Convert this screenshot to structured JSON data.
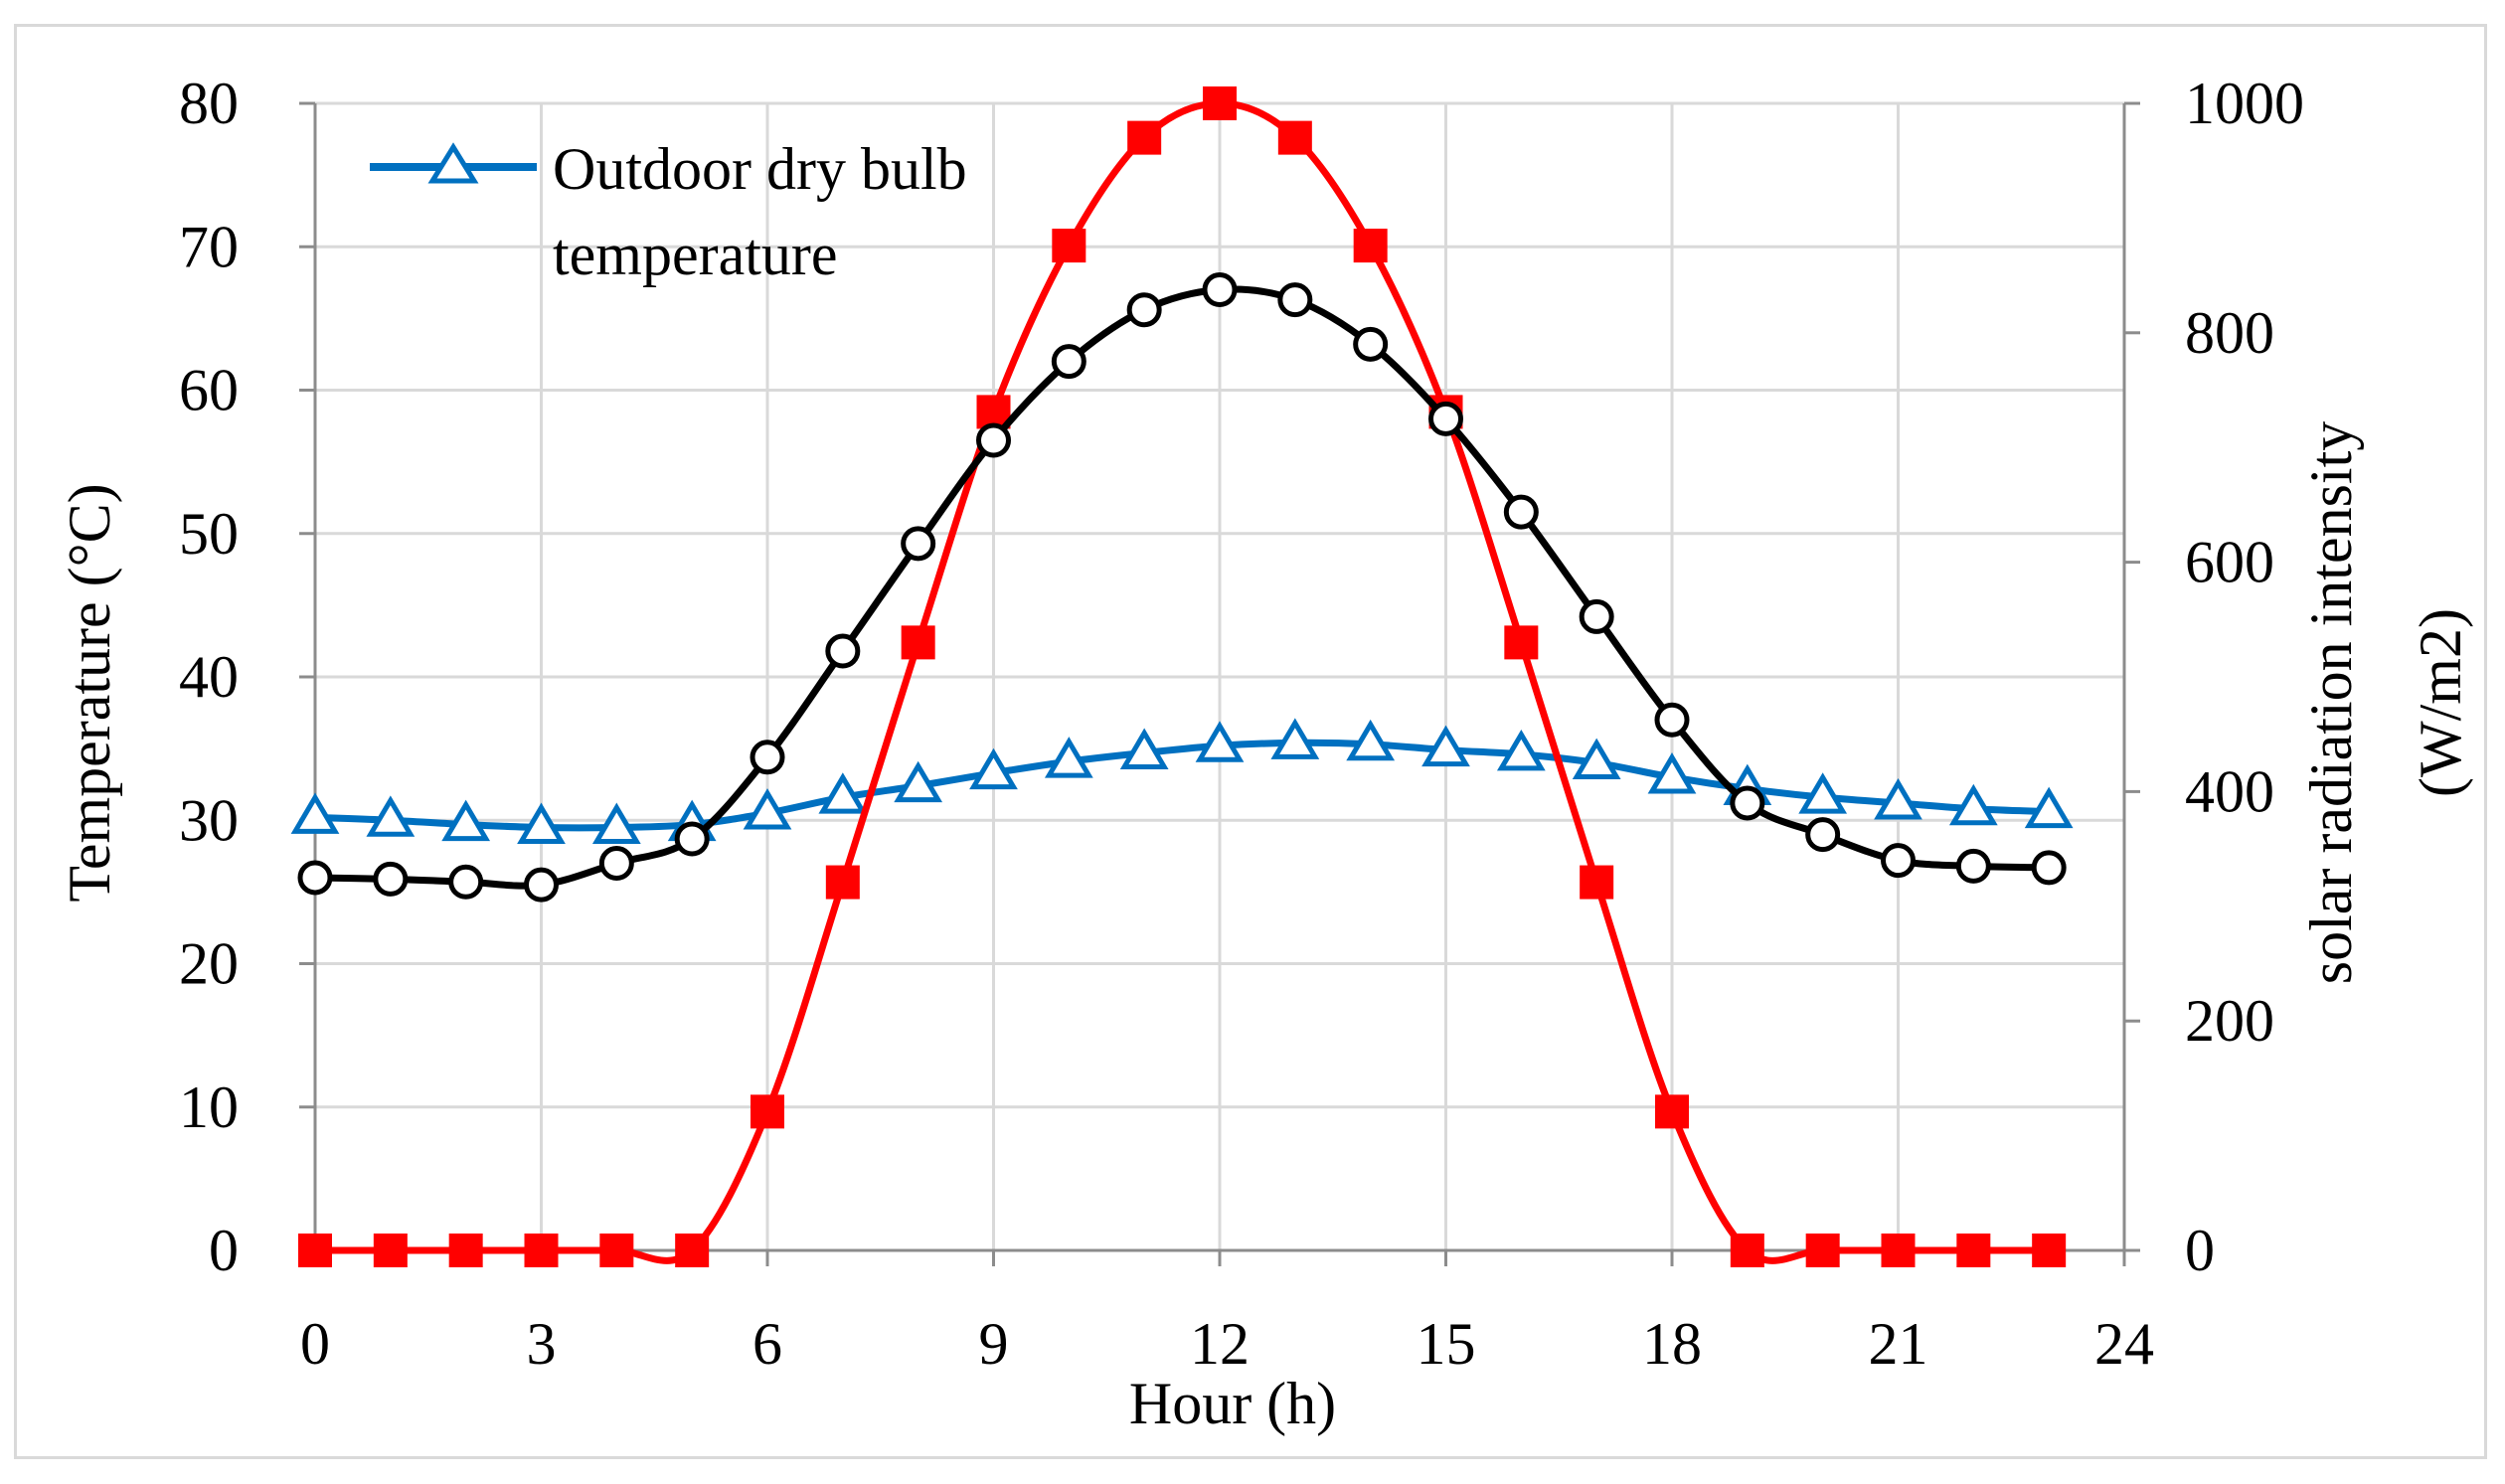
{
  "chart_data": {
    "type": "line",
    "title": "",
    "xlabel": "Hour (h)",
    "ylabel": "Temperature (°C)",
    "y2label_line1": "solar radiation intensity",
    "y2label_line2": "(W/m2)",
    "xlim": [
      0,
      24
    ],
    "ylim": [
      0,
      80
    ],
    "y2lim": [
      0,
      1000
    ],
    "x_ticks": [
      0,
      3,
      6,
      9,
      12,
      15,
      18,
      21,
      24
    ],
    "y_ticks": [
      0,
      10,
      20,
      30,
      40,
      50,
      60,
      70,
      80
    ],
    "y2_ticks": [
      0,
      200,
      400,
      600,
      800,
      1000
    ],
    "grid": true,
    "legend_position": "top-left",
    "x": [
      0,
      1,
      2,
      3,
      4,
      5,
      6,
      7,
      8,
      9,
      10,
      11,
      12,
      13,
      14,
      15,
      16,
      17,
      18,
      19,
      20,
      21,
      22,
      23
    ],
    "series": [
      {
        "name": "Outdoor dry bulb temperature",
        "legend_line1": "Outdoor dry bulb",
        "legend_line2": "temperature",
        "axis": "left",
        "color": "#0070c0",
        "marker": "triangle",
        "show_in_legend": true,
        "values": [
          30.2,
          30.0,
          29.7,
          29.5,
          29.5,
          29.7,
          30.5,
          31.6,
          32.4,
          33.3,
          34.1,
          34.7,
          35.2,
          35.4,
          35.3,
          34.9,
          34.6,
          34.0,
          33.0,
          32.2,
          31.6,
          31.2,
          30.8,
          30.6
        ]
      },
      {
        "name": "Temperature",
        "axis": "left",
        "color": "#000000",
        "marker": "circle",
        "show_in_legend": false,
        "values": [
          26.0,
          25.9,
          25.7,
          25.5,
          27.0,
          28.7,
          34.4,
          41.8,
          49.3,
          56.5,
          62.0,
          65.6,
          67.0,
          66.3,
          63.2,
          58.0,
          51.5,
          44.2,
          37.0,
          31.2,
          29.0,
          27.2,
          26.8,
          26.7
        ]
      },
      {
        "name": "Solar radiation intensity",
        "axis": "right",
        "color": "#ff0000",
        "marker": "square",
        "show_in_legend": false,
        "values": [
          0,
          0,
          0,
          0,
          0,
          0,
          121,
          321,
          530,
          731,
          876,
          970,
          1000,
          970,
          876,
          731,
          530,
          321,
          121,
          0,
          0,
          0,
          0,
          0
        ]
      }
    ]
  }
}
